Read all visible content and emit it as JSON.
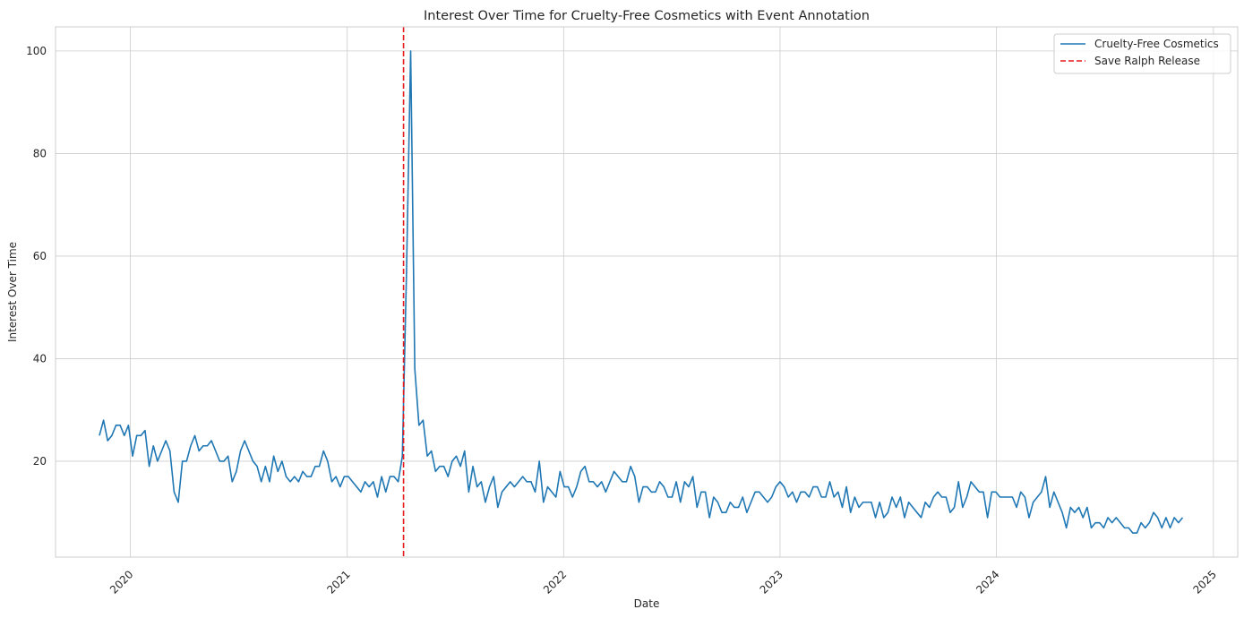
{
  "chart_data": {
    "type": "line",
    "title": "Interest Over Time for Cruelty-Free Cosmetics with Event Annotation",
    "xlabel": "Date",
    "ylabel": "Interest Over Time",
    "x_ticks": [
      "2020",
      "2021",
      "2022",
      "2023",
      "2024",
      "2025"
    ],
    "y_ticks": [
      20,
      40,
      60,
      80,
      100
    ],
    "xlim": [
      "2019-08-28",
      "2025-02-11"
    ],
    "ylim": [
      1.3,
      104.7
    ],
    "grid": true,
    "legend_position": "top-right",
    "colors": {
      "series": "#1f77b4",
      "event": "#e41a1c",
      "grid": "#cccccc",
      "frame": "#cccccc"
    },
    "series": [
      {
        "name": "Cruelty-Free Cosmetics",
        "start_date": "2019-11-10",
        "interval_days": 7,
        "values": [
          25,
          28,
          24,
          25,
          27,
          27,
          25,
          27,
          21,
          25,
          25,
          26,
          19,
          23,
          20,
          22,
          24,
          22,
          14,
          12,
          20,
          20,
          23,
          25,
          22,
          23,
          23,
          24,
          22,
          20,
          20,
          21,
          16,
          18,
          22,
          24,
          22,
          20,
          19,
          16,
          19,
          16,
          21,
          18,
          20,
          17,
          16,
          17,
          16,
          18,
          17,
          17,
          19,
          19,
          22,
          20,
          16,
          17,
          15,
          17,
          17,
          16,
          15,
          14,
          16,
          15,
          16,
          13,
          17,
          14,
          17,
          17,
          16,
          21,
          57,
          100,
          38,
          27,
          28,
          21,
          22,
          18,
          19,
          19,
          17,
          20,
          21,
          19,
          22,
          14,
          19,
          15,
          16,
          12,
          15,
          17,
          11,
          14,
          15,
          16,
          15,
          16,
          17,
          16,
          16,
          14,
          20,
          12,
          15,
          14,
          13,
          18,
          15,
          15,
          13,
          15,
          18,
          19,
          16,
          16,
          15,
          16,
          14,
          16,
          18,
          17,
          16,
          16,
          19,
          17,
          12,
          15,
          15,
          14,
          14,
          16,
          15,
          13,
          13,
          16,
          12,
          16,
          15,
          17,
          11,
          14,
          14,
          9,
          13,
          12,
          10,
          10,
          12,
          11,
          11,
          13,
          10,
          12,
          14,
          14,
          13,
          12,
          13,
          15,
          16,
          15,
          13,
          14,
          12,
          14,
          14,
          13,
          15,
          15,
          13,
          13,
          16,
          13,
          14,
          11,
          15,
          10,
          13,
          11,
          12,
          12,
          12,
          9,
          12,
          9,
          10,
          13,
          11,
          13,
          9,
          12,
          11,
          10,
          9,
          12,
          11,
          13,
          14,
          13,
          13,
          10,
          11,
          16,
          11,
          13,
          16,
          15,
          14,
          14,
          9,
          14,
          14,
          13,
          13,
          13,
          13,
          11,
          14,
          13,
          9,
          12,
          13,
          14,
          17,
          11,
          14,
          12,
          10,
          7,
          11,
          10,
          11,
          9,
          11,
          7,
          8,
          8,
          7,
          9,
          8,
          9,
          8,
          7,
          7,
          6,
          6,
          8,
          7,
          8,
          10,
          9,
          7,
          9,
          7,
          9,
          8,
          9
        ]
      }
    ],
    "event": {
      "name": "Save Ralph Release",
      "date": "2021-04-06"
    }
  }
}
